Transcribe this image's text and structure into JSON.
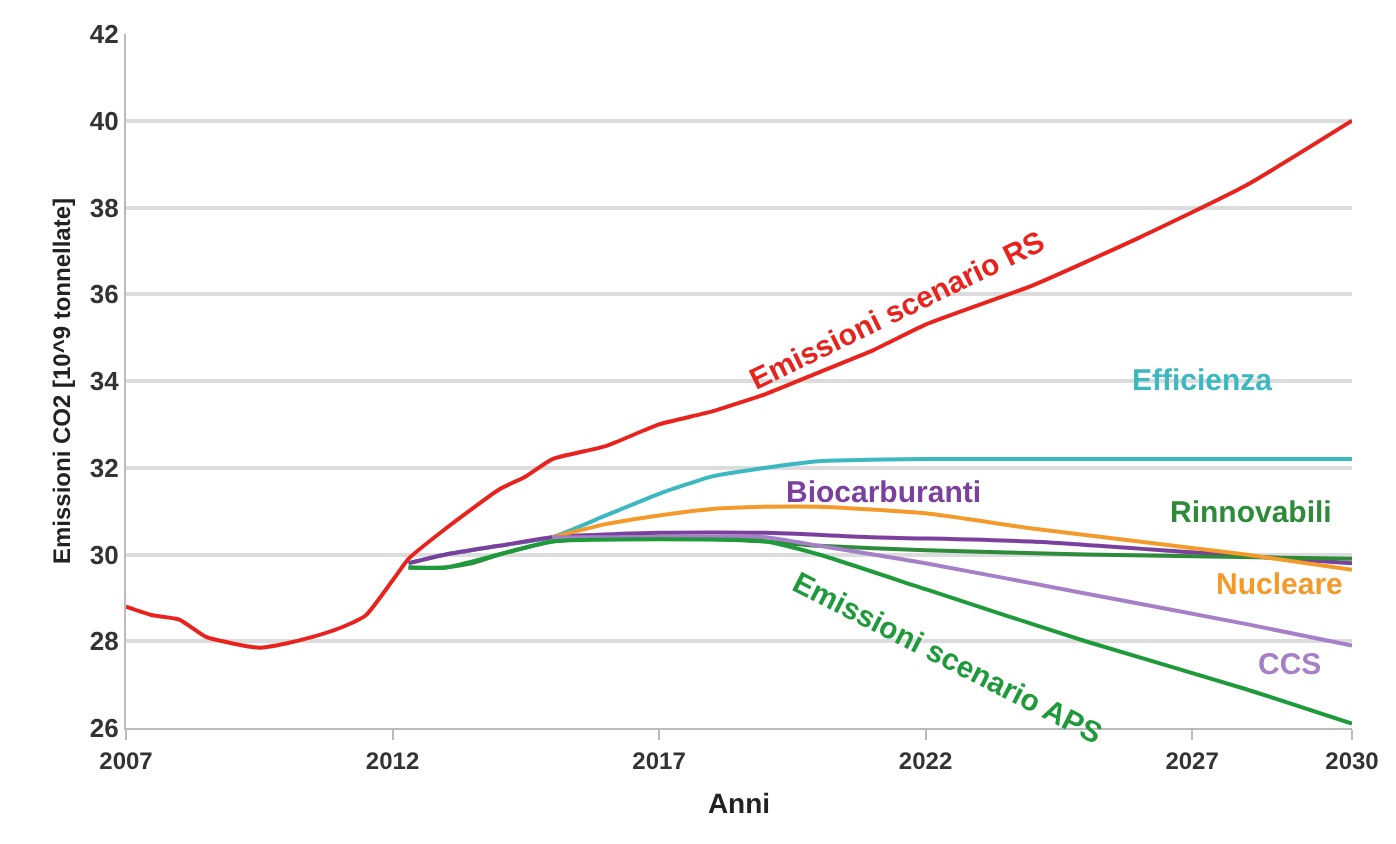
{
  "chart_data": {
    "type": "line",
    "xlabel": "Anni",
    "ylabel": "Emissioni CO2 [10^9 tonnellate]",
    "xlim": [
      2007,
      2030
    ],
    "xticks": [
      2007,
      2012,
      2017,
      2022,
      2027,
      2030
    ],
    "ylim": [
      26,
      42
    ],
    "yticks": [
      26,
      28,
      30,
      32,
      34,
      36,
      38,
      40,
      42
    ],
    "grid": "y",
    "marker": "none",
    "line_style": "solid",
    "series": [
      {
        "color": "#e8231d",
        "x": [
          2007,
          2007.5,
          2008,
          2008.5,
          2009,
          2009.5,
          2010,
          2010.5,
          2011,
          2011.5,
          2012,
          2012.3,
          2013,
          2014,
          2014.5,
          2015,
          2016,
          2017,
          2018,
          2019,
          2020,
          2021,
          2022,
          2024,
          2026,
          2028,
          2030
        ],
        "values": [
          28.8,
          28.6,
          28.5,
          28.1,
          27.95,
          27.85,
          27.95,
          28.1,
          28.3,
          28.6,
          29.4,
          29.9,
          30.6,
          31.5,
          31.8,
          32.2,
          32.5,
          33.0,
          33.3,
          33.7,
          34.2,
          34.7,
          35.3,
          36.2,
          37.3,
          38.5,
          40.0
        ]
      },
      {
        "color": "#3bb8c0",
        "x": [
          2012.3,
          2013,
          2014,
          2015,
          2016,
          2017,
          2018,
          2019,
          2020,
          2022,
          2026,
          2030
        ],
        "values": [
          29.8,
          30.0,
          30.2,
          30.4,
          30.9,
          31.4,
          31.8,
          32.0,
          32.15,
          32.2,
          32.2,
          32.2
        ]
      },
      {
        "color": "#7b3f9e",
        "x": [
          2012.3,
          2013,
          2014,
          2015,
          2017,
          2019,
          2021,
          2024,
          2027,
          2030
        ],
        "values": [
          29.8,
          30.0,
          30.2,
          30.4,
          30.5,
          30.5,
          30.4,
          30.3,
          30.05,
          29.8
        ]
      },
      {
        "color": "#2e8b3a",
        "x": [
          2012.3,
          2013,
          2013.5,
          2014,
          2015,
          2017,
          2019,
          2020,
          2022,
          2025,
          2030
        ],
        "values": [
          29.7,
          29.7,
          29.8,
          30.0,
          30.3,
          30.4,
          30.3,
          30.2,
          30.1,
          30.0,
          29.9
        ]
      },
      {
        "color": "#f39a2b",
        "x": [
          2015,
          2016,
          2017,
          2018,
          2019,
          2020,
          2022,
          2024,
          2026,
          2028,
          2030
        ],
        "values": [
          30.4,
          30.7,
          30.9,
          31.05,
          31.1,
          31.1,
          30.95,
          30.6,
          30.3,
          30.0,
          29.65
        ]
      },
      {
        "color": "#a57fc8",
        "x": [
          2015,
          2017,
          2019,
          2020,
          2022,
          2025,
          2028,
          2030
        ],
        "values": [
          30.4,
          30.4,
          30.4,
          30.2,
          29.8,
          29.1,
          28.4,
          27.9
        ]
      },
      {
        "color": "#1f9a3a",
        "x": [
          2012.3,
          2013,
          2014,
          2015,
          2017,
          2019,
          2020,
          2022,
          2025,
          2028,
          2030
        ],
        "values": [
          29.7,
          29.7,
          30.0,
          30.3,
          30.35,
          30.3,
          30.0,
          29.2,
          28.0,
          26.9,
          26.1
        ]
      }
    ],
    "annotations": [
      "Emissioni scenario RS",
      "Efficienza",
      "Biocarburanti",
      "Rinnovabili",
      "Nucleare",
      "CCS",
      "Emissioni scenario APS"
    ]
  }
}
